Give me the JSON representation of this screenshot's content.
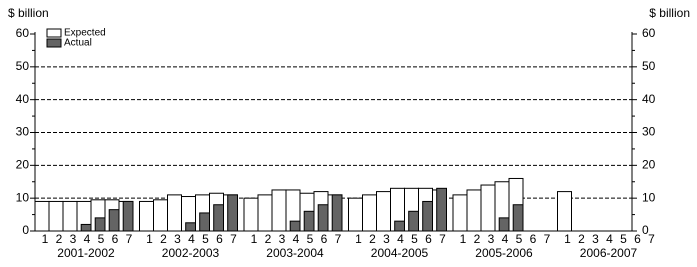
{
  "chart_data": {
    "type": "bar",
    "y_label": "$ billion",
    "groups": [
      "2001-2002",
      "2002-2003",
      "2003-2004",
      "2004-2005",
      "2005-2006",
      "2006-2007"
    ],
    "categories": [
      "1",
      "2",
      "3",
      "4",
      "5",
      "6",
      "7"
    ],
    "series": [
      {
        "name": "Expected",
        "color": "#ffffff",
        "values": [
          [
            9,
            9,
            9,
            9,
            9.5,
            9.5,
            9
          ],
          [
            9,
            9.5,
            11,
            10.5,
            11,
            11.5,
            11
          ],
          [
            10,
            11,
            12.5,
            12.5,
            11.5,
            12,
            11
          ],
          [
            10,
            11,
            12,
            13,
            13,
            13,
            12.5
          ],
          [
            11,
            12.5,
            14,
            15,
            16,
            null,
            null
          ],
          [
            12,
            null,
            null,
            null,
            null,
            null,
            null
          ]
        ]
      },
      {
        "name": "Actual",
        "color": "#646464",
        "values": [
          [
            null,
            null,
            null,
            2,
            4,
            6.5,
            9
          ],
          [
            null,
            null,
            null,
            2.5,
            5.5,
            8,
            11
          ],
          [
            null,
            null,
            null,
            3,
            6,
            8,
            11
          ],
          [
            null,
            null,
            null,
            3,
            6,
            9,
            13
          ],
          [
            null,
            null,
            null,
            4,
            8,
            null,
            null
          ],
          [
            null,
            null,
            null,
            null,
            null,
            null,
            null
          ]
        ]
      }
    ],
    "ylim": [
      0,
      60
    ],
    "yticks": [
      0,
      10,
      20,
      30,
      40,
      50,
      60
    ],
    "grid": true
  }
}
